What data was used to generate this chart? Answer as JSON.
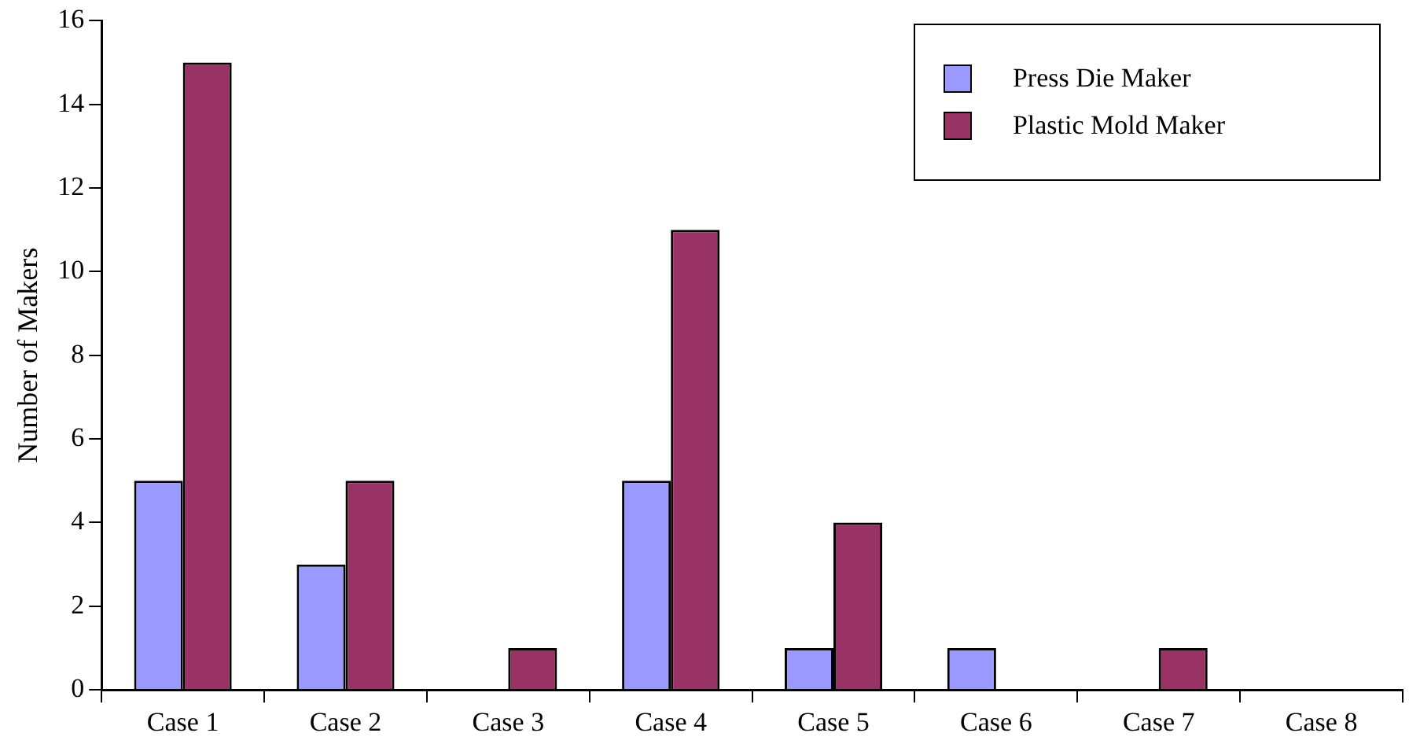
{
  "chart_data": {
    "type": "bar",
    "ylabel": "Number of Makers",
    "categories": [
      "Case 1",
      "Case 2",
      "Case 3",
      "Case 4",
      "Case 5",
      "Case 6",
      "Case 7",
      "Case 8"
    ],
    "series": [
      {
        "name": "Press Die Maker",
        "color": "#9999ff",
        "values": [
          5,
          3,
          0,
          5,
          1,
          1,
          0,
          0
        ]
      },
      {
        "name": "Plastic Mold Maker",
        "color": "#993366",
        "values": [
          15,
          5,
          1,
          11,
          4,
          0,
          1,
          0
        ]
      }
    ],
    "ylim": [
      0,
      16
    ],
    "yticks": [
      0,
      2,
      4,
      6,
      8,
      10,
      12,
      14,
      16
    ],
    "grid": false,
    "legend": "top right"
  }
}
